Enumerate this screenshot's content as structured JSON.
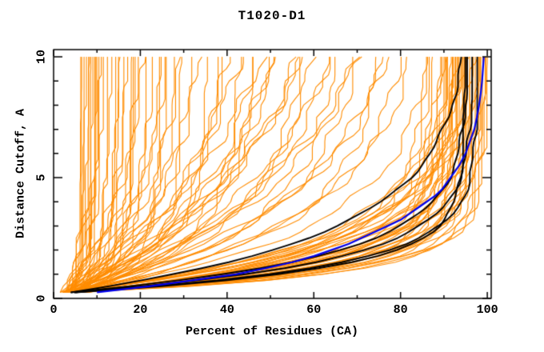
{
  "chart_data": {
    "type": "line",
    "title": "T1020-D1",
    "xlabel": "Percent of Residues (CA)",
    "ylabel": "Distance Cutoff, A",
    "xlim": [
      0,
      100.9
    ],
    "ylim": [
      0,
      10.3
    ],
    "xticks_major": [
      0,
      20,
      40,
      60,
      80,
      100
    ],
    "xtick_labels": [
      "0",
      "20",
      "40",
      "60",
      "80",
      "100"
    ],
    "xticks_minor": [
      10,
      30,
      50,
      70,
      90
    ],
    "yticks_major": [
      0,
      5,
      10
    ],
    "ytick_labels": [
      "0",
      "5",
      "10"
    ],
    "yticks_minor": [
      1,
      2,
      3,
      4,
      6,
      7,
      8,
      9
    ],
    "grid": false,
    "legend": "none",
    "colors": {
      "background": "#FFFFFF",
      "axis": "#000000",
      "ensemble": "#FF8C00",
      "highlight": "#000000",
      "best": "#0000EE"
    },
    "y_samples": {
      "start": 0.25,
      "end": 10.0,
      "step": 0.25
    },
    "curve_model": "x(y) = x0 + (xmax - x0) * (1 - exp(-(y - y_start)/tau)) + jitter, clamped monotonic",
    "jitter_amp": {
      "ensemble": 1.6,
      "highlight": 0.5,
      "best": 0.0
    },
    "best_series_points": [
      [
        0.25,
        10
      ],
      [
        0.5,
        22
      ],
      [
        0.75,
        32
      ],
      [
        1,
        42
      ],
      [
        1.25,
        49
      ],
      [
        1.5,
        55
      ],
      [
        1.75,
        60
      ],
      [
        2,
        64
      ],
      [
        2.25,
        68
      ],
      [
        2.5,
        71
      ],
      [
        2.75,
        74
      ],
      [
        3,
        77
      ],
      [
        3.25,
        80
      ],
      [
        3.5,
        82
      ],
      [
        3.75,
        84
      ],
      [
        4,
        86
      ],
      [
        4.25,
        88
      ],
      [
        4.5,
        89.5
      ],
      [
        5,
        91.5
      ],
      [
        5.5,
        93.5
      ],
      [
        6,
        95
      ],
      [
        6.5,
        96
      ],
      [
        7,
        97
      ],
      [
        7.5,
        97.6
      ],
      [
        8,
        98.1
      ],
      [
        8.5,
        98.5
      ],
      [
        9,
        98.8
      ],
      [
        9.5,
        99
      ],
      [
        10,
        99.2
      ]
    ],
    "highlight_series": [
      [
        5,
        97.5,
        1.15
      ],
      [
        5,
        96.5,
        1.35
      ],
      [
        4,
        95.5,
        1.55
      ],
      [
        4,
        96.0,
        2.5
      ],
      [
        5,
        94.5,
        1.0
      ]
    ],
    "ensemble_series": [
      [
        4,
        99,
        1.0
      ],
      [
        5,
        98.5,
        1.2
      ],
      [
        6,
        98,
        0.9
      ],
      [
        3,
        97.8,
        1.4
      ],
      [
        5,
        97.5,
        0.8
      ],
      [
        4,
        97.2,
        1.6
      ],
      [
        6,
        97,
        1.1
      ],
      [
        5,
        96.8,
        1.9
      ],
      [
        4,
        96.5,
        0.75
      ],
      [
        6,
        96.3,
        1.3
      ],
      [
        3,
        96,
        2.1
      ],
      [
        5,
        95.8,
        1.0
      ],
      [
        7,
        95.5,
        1.5
      ],
      [
        4,
        95.2,
        0.85
      ],
      [
        6,
        95,
        1.8
      ],
      [
        5,
        94.8,
        1.15
      ],
      [
        3,
        94.5,
        2.2
      ],
      [
        6,
        94.2,
        0.95
      ],
      [
        4,
        94,
        1.45
      ],
      [
        5,
        93.7,
        1.7
      ],
      [
        7,
        93.5,
        1.05
      ],
      [
        4,
        93.2,
        2.0
      ],
      [
        5,
        93,
        0.8
      ],
      [
        6,
        92.7,
        1.35
      ],
      [
        3,
        92.5,
        1.9
      ],
      [
        5,
        92.2,
        1.1
      ],
      [
        4,
        92,
        1.6
      ],
      [
        6,
        91.7,
        0.9
      ],
      [
        5,
        91.5,
        2.15
      ],
      [
        4,
        91.2,
        1.25
      ],
      [
        7,
        91,
        1.5
      ],
      [
        5,
        90.7,
        1.0
      ],
      [
        3,
        90.5,
        1.8
      ],
      [
        6,
        90.2,
        1.2
      ],
      [
        4,
        90,
        2.05
      ],
      [
        5,
        89.5,
        1.4
      ],
      [
        6,
        89,
        0.95
      ],
      [
        4,
        88.5,
        1.65
      ],
      [
        5,
        88,
        1.15
      ],
      [
        3,
        87,
        1.95
      ],
      [
        6,
        86,
        1.3
      ],
      [
        4,
        85,
        1.55
      ],
      [
        4,
        88,
        2.6
      ],
      [
        5,
        86,
        3.2
      ],
      [
        3,
        84,
        4.0
      ],
      [
        6,
        82,
        2.9
      ],
      [
        4,
        80,
        3.6
      ],
      [
        5,
        78,
        4.5
      ],
      [
        3,
        76,
        2.5
      ],
      [
        6,
        74,
        5.2
      ],
      [
        4,
        72,
        3.0
      ],
      [
        5,
        70,
        6.0
      ],
      [
        4,
        68,
        3.8
      ],
      [
        6,
        66,
        2.7
      ],
      [
        3,
        64,
        4.8
      ],
      [
        5,
        62,
        3.3
      ],
      [
        4,
        60,
        5.5
      ],
      [
        6,
        58,
        2.8
      ],
      [
        3,
        56,
        4.2
      ],
      [
        5,
        54,
        6.5
      ],
      [
        4,
        52,
        3.5
      ],
      [
        5,
        75,
        7.0
      ],
      [
        6,
        85,
        5.8
      ],
      [
        3,
        65,
        7.5
      ],
      [
        4,
        48,
        3.4
      ],
      [
        3,
        46,
        2.2
      ],
      [
        5,
        44,
        4.4
      ],
      [
        4,
        42,
        1.8
      ],
      [
        3,
        40,
        3.0
      ],
      [
        5,
        38,
        2.5
      ],
      [
        4,
        36,
        4.0
      ],
      [
        3,
        34,
        1.5
      ],
      [
        5,
        32,
        2.8
      ],
      [
        4,
        30,
        3.6
      ],
      [
        3,
        28,
        1.2
      ],
      [
        5,
        27,
        2.0
      ],
      [
        4,
        26,
        3.2
      ],
      [
        3,
        25,
        1.7
      ],
      [
        5,
        24,
        2.6
      ],
      [
        4,
        23,
        1.0
      ],
      [
        3,
        22,
        2.3
      ],
      [
        5,
        21,
        3.8
      ],
      [
        4,
        20,
        1.4
      ],
      [
        3,
        19,
        2.9
      ],
      [
        5,
        18,
        1.9
      ],
      [
        4,
        17,
        1.1
      ],
      [
        3,
        16,
        2.4
      ],
      [
        4,
        15,
        1.6
      ],
      [
        5,
        14,
        2.1
      ],
      [
        3,
        13,
        1.3
      ],
      [
        4,
        12,
        1.8
      ],
      [
        3,
        11,
        0.9
      ],
      [
        4,
        10,
        1.5
      ],
      [
        3,
        9.5,
        2.0
      ],
      [
        4,
        9,
        1.1
      ],
      [
        3,
        8.5,
        1.4
      ],
      [
        5,
        16.5,
        0.7
      ],
      [
        4,
        13.5,
        0.8
      ],
      [
        3,
        8,
        0.9
      ],
      [
        4,
        7.5,
        1.2
      ],
      [
        3,
        7,
        0.7
      ],
      [
        4,
        6.5,
        1.0
      ],
      [
        3,
        6,
        1.5
      ],
      [
        5,
        8.2,
        0.6
      ],
      [
        3,
        5.5,
        0.8
      ],
      [
        4,
        5,
        1.1
      ],
      [
        3,
        4.8,
        0.6
      ],
      [
        4,
        6.8,
        1.8
      ]
    ]
  }
}
